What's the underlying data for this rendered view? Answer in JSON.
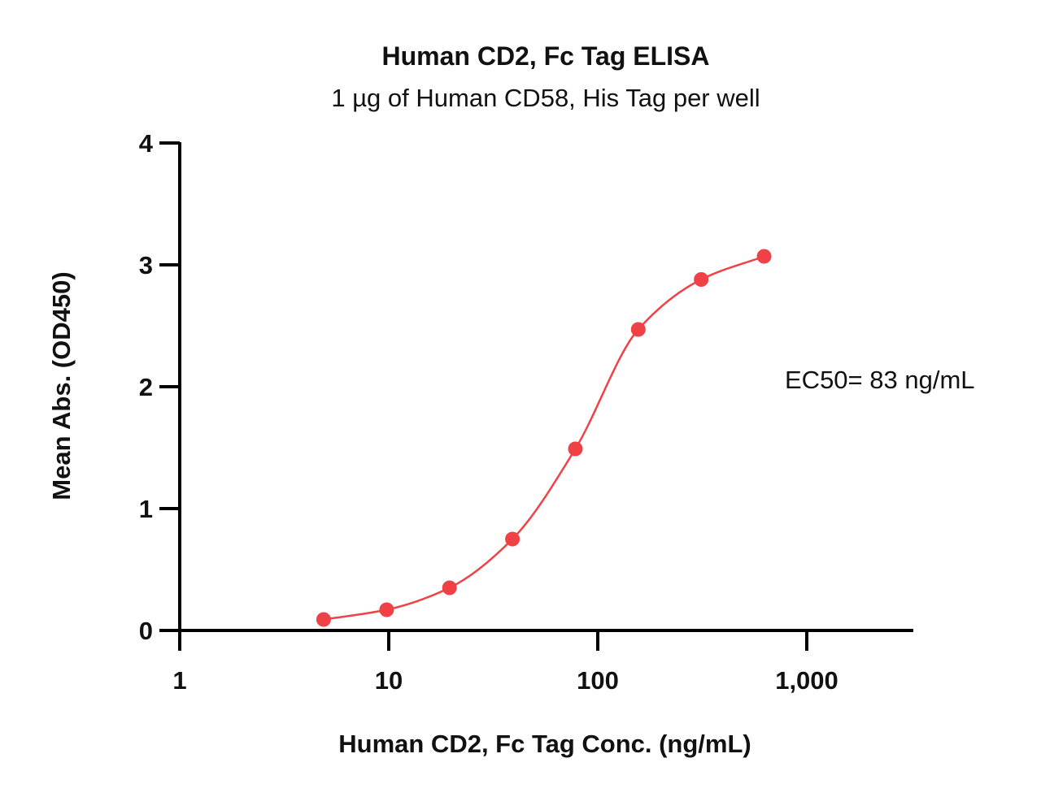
{
  "chart_data": {
    "type": "scatter",
    "title": "Human CD2, Fc Tag ELISA",
    "subtitle": "1 µg of Human CD58, His Tag per well",
    "xlabel": "Human CD2, Fc Tag Conc. (ng/mL)",
    "ylabel": "Mean Abs. (OD450)",
    "x_scale": "log",
    "xlim": [
      1,
      3000
    ],
    "ylim": [
      0,
      4
    ],
    "x_ticks": [
      {
        "value": 1,
        "label": "1"
      },
      {
        "value": 10,
        "label": "10"
      },
      {
        "value": 100,
        "label": "100"
      },
      {
        "value": 1000,
        "label": "1,000"
      }
    ],
    "y_ticks": [
      {
        "value": 0,
        "label": "0"
      },
      {
        "value": 1,
        "label": "1"
      },
      {
        "value": 2,
        "label": "2"
      },
      {
        "value": 3,
        "label": "3"
      },
      {
        "value": 4,
        "label": "4"
      }
    ],
    "series": [
      {
        "x": [
          4.88,
          9.77,
          19.53,
          39.06,
          78.13,
          156.25,
          312.5,
          625
        ],
        "y": [
          0.09,
          0.17,
          0.35,
          0.75,
          1.49,
          2.47,
          2.88,
          3.07
        ],
        "color": "#ef4146",
        "fit": "4PL sigmoidal curve"
      }
    ],
    "annotations": [
      {
        "text": "EC50= 83 ng/mL"
      }
    ]
  }
}
